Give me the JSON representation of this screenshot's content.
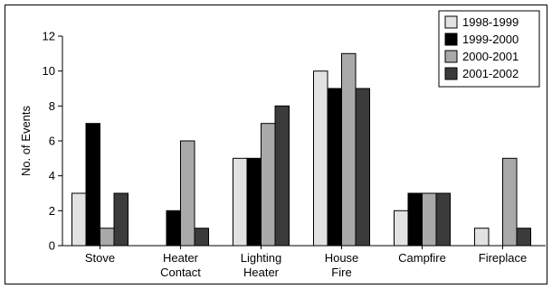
{
  "chart_data": {
    "type": "bar",
    "title": "",
    "xlabel": "",
    "ylabel": "No. of Events",
    "ylim": [
      0,
      12
    ],
    "yticks": [
      0,
      2,
      4,
      6,
      8,
      10,
      12
    ],
    "grid": false,
    "legend_position": "top-right",
    "categories": [
      [
        "Stove"
      ],
      [
        "Heater",
        "Contact"
      ],
      [
        "Lighting",
        "Heater"
      ],
      [
        "House",
        "Fire"
      ],
      [
        "Campfire"
      ],
      [
        "Fireplace"
      ]
    ],
    "series": [
      {
        "name": "1998-1999",
        "color": "#e2e2e2",
        "values": [
          3,
          0,
          5,
          10,
          2,
          1
        ]
      },
      {
        "name": "1999-2000",
        "color": "#000000",
        "values": [
          7,
          2,
          5,
          9,
          3,
          0
        ]
      },
      {
        "name": "2000-2001",
        "color": "#a9a9a9",
        "values": [
          1,
          6,
          7,
          11,
          3,
          5
        ]
      },
      {
        "name": "2001-2002",
        "color": "#3b3b3b",
        "values": [
          3,
          1,
          8,
          9,
          3,
          1
        ]
      }
    ]
  }
}
